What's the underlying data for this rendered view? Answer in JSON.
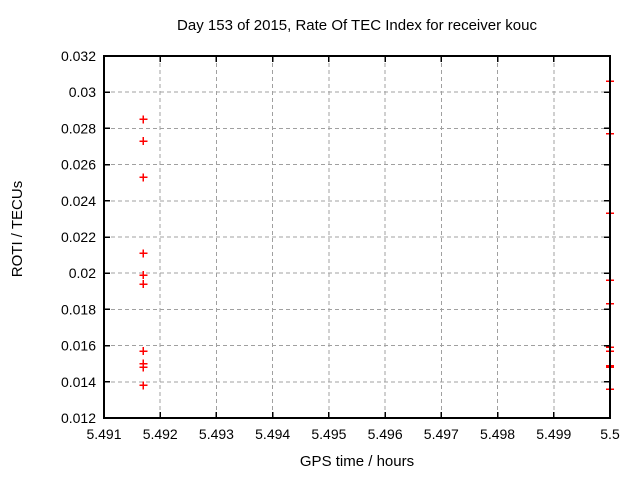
{
  "chart_data": {
    "type": "scatter",
    "title": "Day 153 of 2015, Rate Of TEC Index for receiver kouc",
    "xlabel": "GPS time / hours",
    "ylabel": "ROTI / TECUs",
    "xlim": [
      5.491,
      5.5
    ],
    "ylim": [
      0.012,
      0.032
    ],
    "grid": true,
    "legend": "none",
    "marker": "plus",
    "colors": {
      "marker": "#ff0000",
      "grid": "#a0a0a0",
      "axis": "#000000",
      "background": "#ffffff"
    },
    "xticks": [
      {
        "value": 5.491,
        "label": "5.491"
      },
      {
        "value": 5.492,
        "label": "5.492"
      },
      {
        "value": 5.493,
        "label": "5.493"
      },
      {
        "value": 5.494,
        "label": "5.494"
      },
      {
        "value": 5.495,
        "label": "5.495"
      },
      {
        "value": 5.496,
        "label": "5.496"
      },
      {
        "value": 5.497,
        "label": "5.497"
      },
      {
        "value": 5.498,
        "label": "5.498"
      },
      {
        "value": 5.499,
        "label": "5.499"
      },
      {
        "value": 5.5,
        "label": "5.5"
      }
    ],
    "yticks": [
      {
        "value": 0.012,
        "label": "0.012"
      },
      {
        "value": 0.014,
        "label": "0.014"
      },
      {
        "value": 0.016,
        "label": "0.016"
      },
      {
        "value": 0.018,
        "label": "0.018"
      },
      {
        "value": 0.02,
        "label": "0.02"
      },
      {
        "value": 0.022,
        "label": "0.022"
      },
      {
        "value": 0.024,
        "label": "0.024"
      },
      {
        "value": 0.026,
        "label": "0.026"
      },
      {
        "value": 0.028,
        "label": "0.028"
      },
      {
        "value": 0.03,
        "label": "0.03"
      },
      {
        "value": 0.032,
        "label": "0.032"
      }
    ],
    "series": [
      {
        "name": "ROTI",
        "points": [
          [
            5.4917,
            0.0285
          ],
          [
            5.4917,
            0.0273
          ],
          [
            5.4917,
            0.0253
          ],
          [
            5.4917,
            0.0211
          ],
          [
            5.4917,
            0.0199
          ],
          [
            5.4917,
            0.0194
          ],
          [
            5.4917,
            0.0157
          ],
          [
            5.4917,
            0.015
          ],
          [
            5.4917,
            0.0148
          ],
          [
            5.4917,
            0.0138
          ],
          [
            5.5,
            0.0306
          ],
          [
            5.5,
            0.0277
          ],
          [
            5.5,
            0.0233
          ],
          [
            5.5,
            0.0196
          ],
          [
            5.5,
            0.0183
          ],
          [
            5.5,
            0.0159
          ],
          [
            5.5,
            0.0157
          ],
          [
            5.5,
            0.0149
          ],
          [
            5.5,
            0.0148
          ],
          [
            5.5,
            0.0136
          ]
        ]
      }
    ]
  }
}
